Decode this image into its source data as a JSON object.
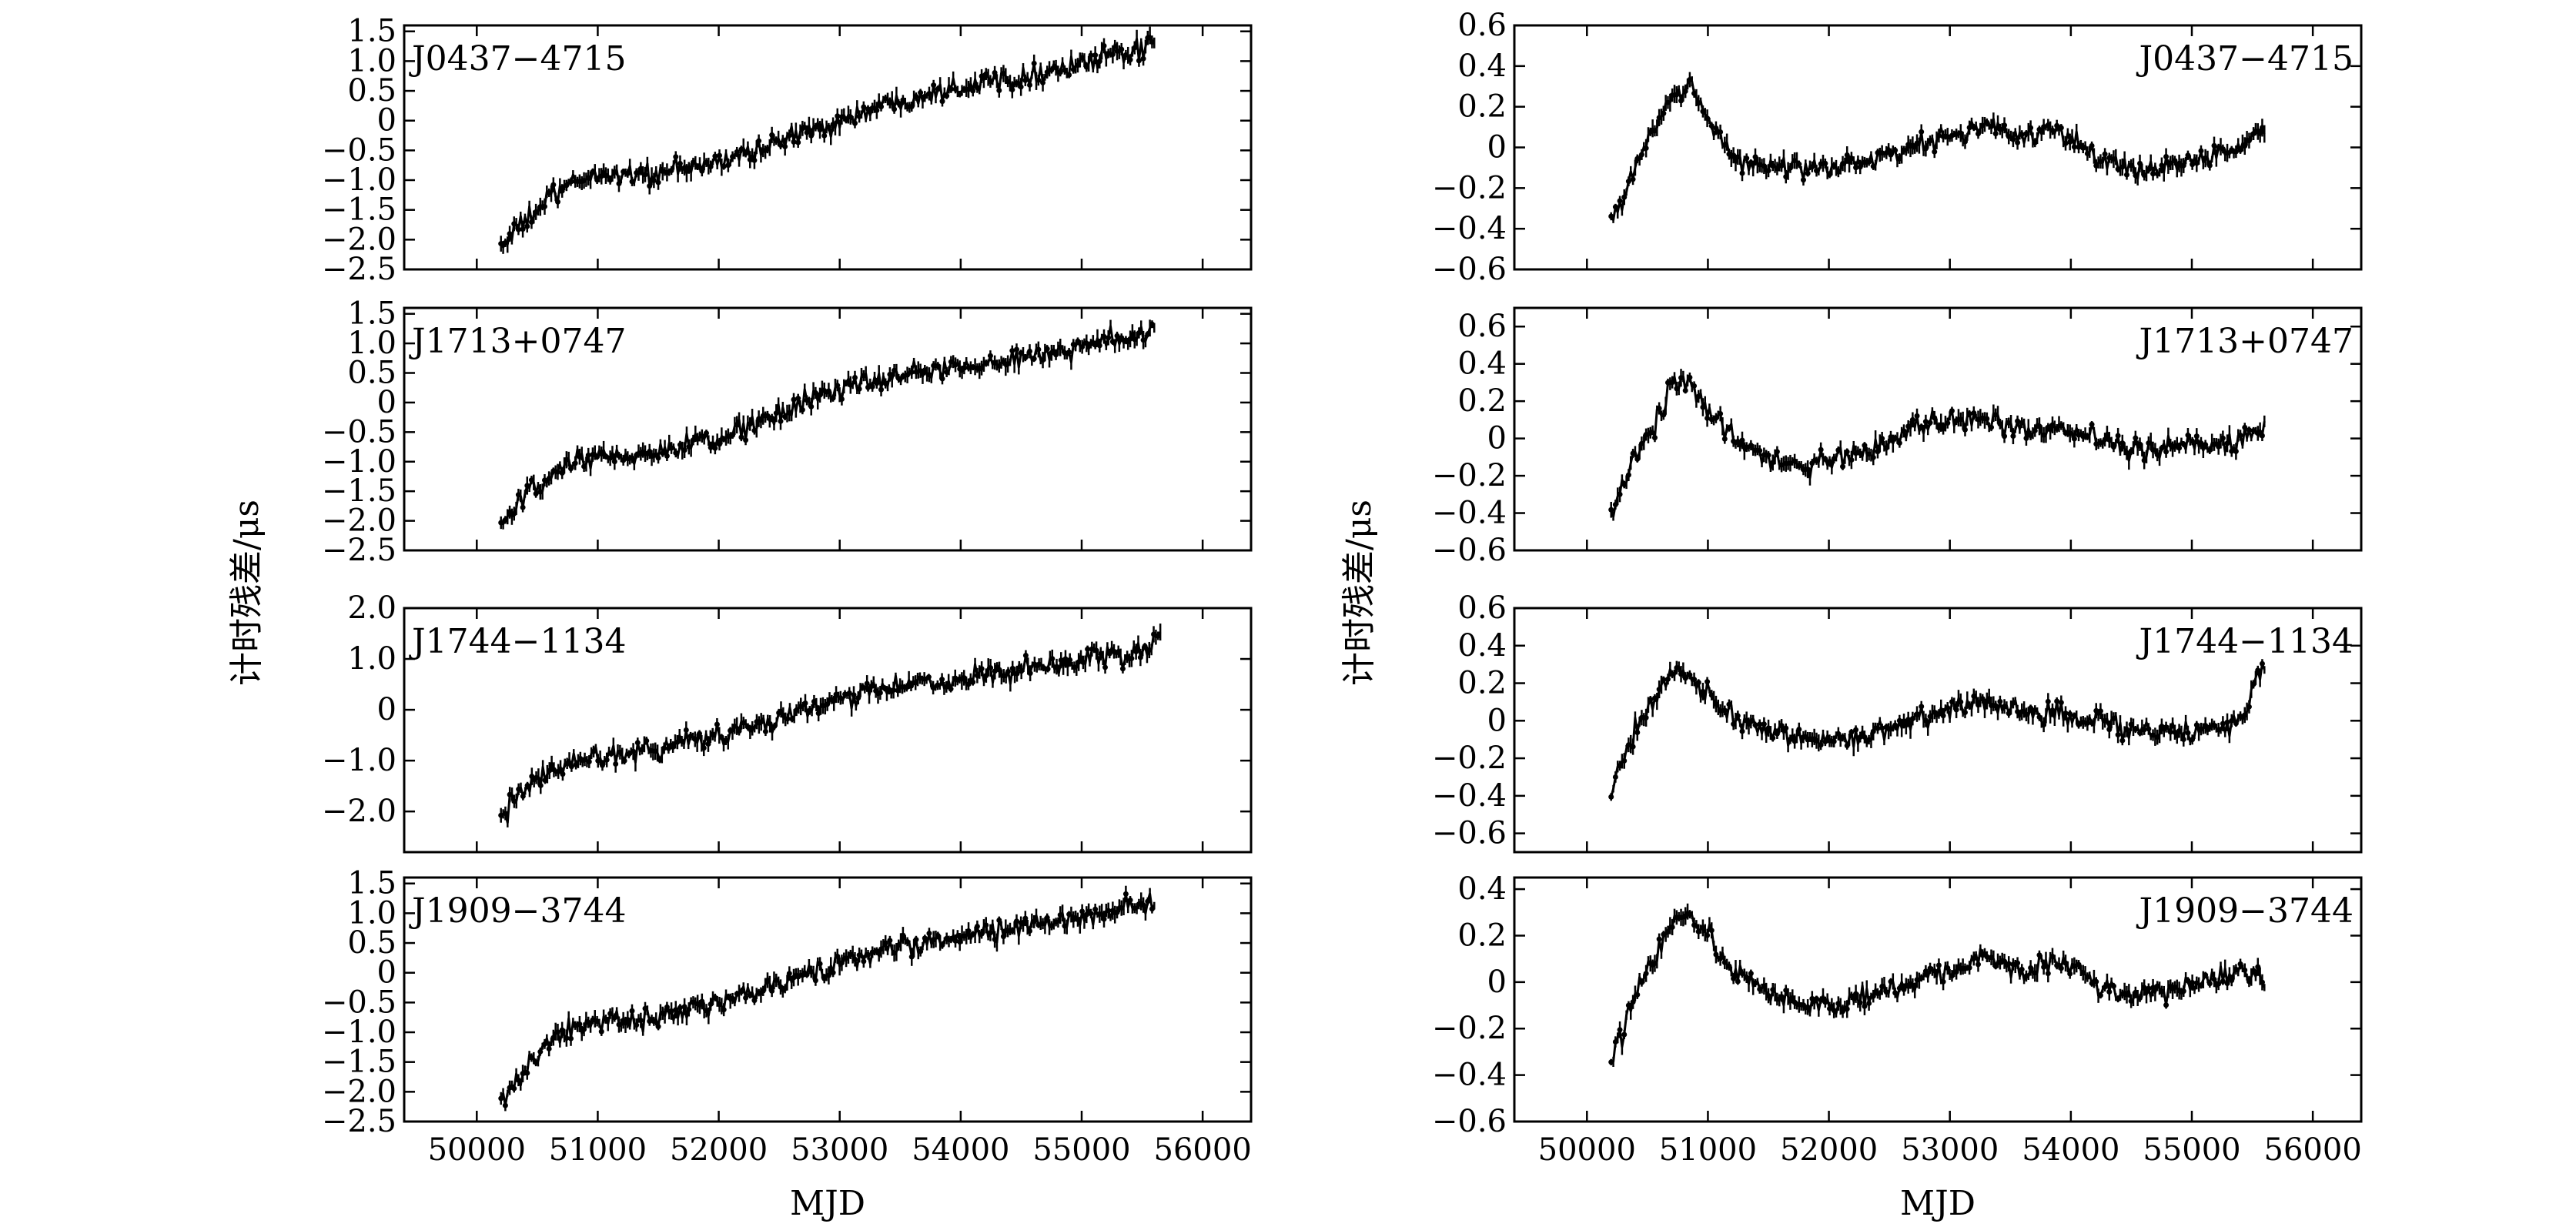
{
  "figure": {
    "ylabel": "计时残差/μs",
    "xlabel": "MJD"
  },
  "chart_data": [
    {
      "type": "line",
      "pulsar": "J0437−4715",
      "column": "left",
      "row": 0,
      "label_pos": "top-left",
      "xlim": [
        49400,
        56400
      ],
      "ylim": [
        -2.5,
        1.6
      ],
      "xticks": [
        50000,
        51000,
        52000,
        53000,
        54000,
        55000,
        56000
      ],
      "yticks": [
        1.5,
        1.0,
        0.5,
        0,
        -0.5,
        -1.0,
        -1.5,
        -2.0,
        -2.5
      ],
      "ytick_labels": [
        "1.5",
        "1.0",
        "0.5",
        "0",
        "−0.5",
        "−1.0",
        "−1.5",
        "−2.0",
        "−2.5"
      ],
      "x": [
        50200,
        50400,
        50600,
        50800,
        51000,
        51500,
        52000,
        52500,
        53000,
        53500,
        54000,
        54500,
        55000,
        55300,
        55600
      ],
      "y": [
        -2.1,
        -1.7,
        -1.3,
        -1.05,
        -0.9,
        -0.9,
        -0.7,
        -0.35,
        0.0,
        0.35,
        0.6,
        0.75,
        0.95,
        1.1,
        1.25
      ]
    },
    {
      "type": "line",
      "pulsar": "J1713+0747",
      "column": "left",
      "row": 1,
      "label_pos": "top-left",
      "xlim": [
        49400,
        56400
      ],
      "ylim": [
        -2.5,
        1.6
      ],
      "xticks": [
        50000,
        51000,
        52000,
        53000,
        54000,
        55000,
        56000
      ],
      "yticks": [
        1.5,
        1.0,
        0.5,
        0,
        -0.5,
        -1.0,
        -1.5,
        -2.0,
        -2.5
      ],
      "ytick_labels": [
        "1.5",
        "1.0",
        "0.5",
        "0",
        "−0.5",
        "−1.0",
        "−1.5",
        "−2.0",
        "−2.5"
      ],
      "x": [
        50200,
        50400,
        50600,
        50800,
        51000,
        51500,
        52000,
        52500,
        53000,
        53500,
        54000,
        54500,
        55000,
        55300,
        55600
      ],
      "y": [
        -2.1,
        -1.6,
        -1.3,
        -1.0,
        -0.95,
        -0.85,
        -0.6,
        -0.2,
        0.25,
        0.45,
        0.6,
        0.75,
        0.95,
        1.1,
        1.2
      ]
    },
    {
      "type": "line",
      "pulsar": "J1744−1134",
      "column": "left",
      "row": 2,
      "label_pos": "top-left",
      "xlim": [
        49400,
        56400
      ],
      "ylim": [
        -2.8,
        2.0
      ],
      "xticks": [
        50000,
        51000,
        52000,
        53000,
        54000,
        55000,
        56000
      ],
      "yticks": [
        2.0,
        1.0,
        0,
        -1.0,
        -2.0
      ],
      "ytick_labels": [
        "2.0",
        "1.0",
        "0",
        "−1.0",
        "−2.0"
      ],
      "x": [
        50200,
        50400,
        50600,
        50800,
        51000,
        51500,
        52000,
        52500,
        53000,
        53500,
        54000,
        54500,
        55000,
        55300,
        55500,
        55650
      ],
      "y": [
        -2.1,
        -1.6,
        -1.2,
        -1.0,
        -0.9,
        -0.75,
        -0.5,
        -0.15,
        0.2,
        0.45,
        0.6,
        0.75,
        0.95,
        1.05,
        1.15,
        1.45
      ]
    },
    {
      "type": "line",
      "pulsar": "J1909−3744",
      "column": "left",
      "row": 3,
      "label_pos": "top-left",
      "xlim": [
        49400,
        56400
      ],
      "ylim": [
        -2.5,
        1.6
      ],
      "xticks": [
        50000,
        51000,
        52000,
        53000,
        54000,
        55000,
        56000
      ],
      "yticks": [
        1.5,
        1.0,
        0.5,
        0,
        -0.5,
        -1.0,
        -1.5,
        -2.0,
        -2.5
      ],
      "ytick_labels": [
        "1.5",
        "1.0",
        "0.5",
        "0",
        "−0.5",
        "−1.0",
        "−1.5",
        "−2.0",
        "−2.5"
      ],
      "x": [
        50200,
        50400,
        50600,
        50800,
        51000,
        51500,
        52000,
        52500,
        53000,
        53500,
        54000,
        54500,
        55000,
        55300,
        55600
      ],
      "y": [
        -2.1,
        -1.6,
        -1.2,
        -0.95,
        -0.8,
        -0.75,
        -0.55,
        -0.2,
        0.15,
        0.45,
        0.6,
        0.75,
        0.95,
        1.1,
        1.2
      ]
    },
    {
      "type": "line",
      "pulsar": "J0437−4715",
      "column": "right",
      "row": 0,
      "label_pos": "top-right",
      "xlim": [
        49400,
        56400
      ],
      "ylim": [
        -0.6,
        0.6
      ],
      "xticks": [
        50000,
        51000,
        52000,
        53000,
        54000,
        55000,
        56000
      ],
      "yticks": [
        0.6,
        0.4,
        0.2,
        0,
        -0.2,
        -0.4,
        -0.6
      ],
      "ytick_labels": [
        "0.6",
        "0.4",
        "0.2",
        "0",
        "−0.2",
        "−0.4",
        "−0.6"
      ],
      "x": [
        50200,
        50300,
        50400,
        50550,
        50700,
        50850,
        51000,
        51200,
        51500,
        51800,
        52100,
        52400,
        52700,
        53000,
        53300,
        53600,
        53900,
        54200,
        54500,
        54800,
        55100,
        55400,
        55600
      ],
      "y": [
        -0.35,
        -0.25,
        -0.1,
        0.1,
        0.25,
        0.3,
        0.15,
        -0.05,
        -0.1,
        -0.1,
        -0.1,
        -0.05,
        0.0,
        0.05,
        0.1,
        0.05,
        0.1,
        -0.05,
        -0.1,
        -0.1,
        -0.05,
        0.0,
        0.1
      ]
    },
    {
      "type": "line",
      "pulsar": "J1713+0747",
      "column": "right",
      "row": 1,
      "label_pos": "top-right",
      "xlim": [
        49400,
        56400
      ],
      "ylim": [
        -0.6,
        0.7
      ],
      "xticks": [
        50000,
        51000,
        52000,
        53000,
        54000,
        55000,
        56000
      ],
      "yticks": [
        0.6,
        0.4,
        0.2,
        0,
        -0.2,
        -0.4,
        -0.6
      ],
      "ytick_labels": [
        "0.6",
        "0.4",
        "0.2",
        "0",
        "−0.2",
        "−0.4",
        "−0.6"
      ],
      "x": [
        50200,
        50300,
        50400,
        50550,
        50700,
        50850,
        51000,
        51200,
        51500,
        51800,
        52100,
        52400,
        52700,
        53000,
        53300,
        53600,
        53900,
        54200,
        54500,
        54800,
        55100,
        55400,
        55600
      ],
      "y": [
        -0.4,
        -0.25,
        -0.1,
        0.05,
        0.3,
        0.3,
        0.15,
        0.0,
        -0.1,
        -0.15,
        -0.1,
        -0.05,
        0.05,
        0.1,
        0.1,
        0.05,
        0.05,
        0.0,
        -0.05,
        -0.05,
        -0.05,
        0.0,
        0.05
      ]
    },
    {
      "type": "line",
      "pulsar": "J1744−1134",
      "column": "right",
      "row": 2,
      "label_pos": "top-right",
      "xlim": [
        49400,
        56400
      ],
      "ylim": [
        -0.7,
        0.6
      ],
      "xticks": [
        50000,
        51000,
        52000,
        53000,
        54000,
        55000,
        56000
      ],
      "yticks": [
        0.6,
        0.4,
        0.2,
        0,
        -0.2,
        -0.4,
        -0.6
      ],
      "ytick_labels": [
        "0.6",
        "0.4",
        "0.2",
        "0",
        "−0.2",
        "−0.4",
        "−0.6"
      ],
      "x": [
        50200,
        50300,
        50400,
        50550,
        50700,
        50850,
        51000,
        51200,
        51500,
        51800,
        52100,
        52400,
        52700,
        53000,
        53300,
        53600,
        53900,
        54200,
        54500,
        54800,
        55100,
        55400,
        55600
      ],
      "y": [
        -0.35,
        -0.2,
        -0.05,
        0.1,
        0.25,
        0.25,
        0.15,
        0.0,
        -0.05,
        -0.1,
        -0.1,
        -0.05,
        0.0,
        0.05,
        0.1,
        0.05,
        0.05,
        0.0,
        -0.05,
        -0.05,
        -0.05,
        0.0,
        0.3
      ]
    },
    {
      "type": "line",
      "pulsar": "J1909−3744",
      "column": "right",
      "row": 3,
      "label_pos": "top-right",
      "xlim": [
        49400,
        56400
      ],
      "ylim": [
        -0.6,
        0.45
      ],
      "xticks": [
        50000,
        51000,
        52000,
        53000,
        54000,
        55000,
        56000
      ],
      "yticks": [
        0.4,
        0.2,
        0,
        -0.2,
        -0.4,
        -0.6
      ],
      "ytick_labels": [
        "0.4",
        "0.2",
        "0",
        "−0.2",
        "−0.4",
        "−0.6"
      ],
      "x": [
        50200,
        50300,
        50400,
        50550,
        50700,
        50850,
        51000,
        51200,
        51500,
        51800,
        52100,
        52400,
        52700,
        53000,
        53300,
        53600,
        53900,
        54200,
        54500,
        54800,
        55100,
        55400,
        55600
      ],
      "y": [
        -0.35,
        -0.2,
        -0.05,
        0.1,
        0.25,
        0.3,
        0.2,
        0.05,
        -0.05,
        -0.1,
        -0.1,
        -0.05,
        0.0,
        0.05,
        0.1,
        0.05,
        0.1,
        0.0,
        -0.05,
        -0.05,
        0.0,
        0.05,
        0.0
      ]
    }
  ]
}
